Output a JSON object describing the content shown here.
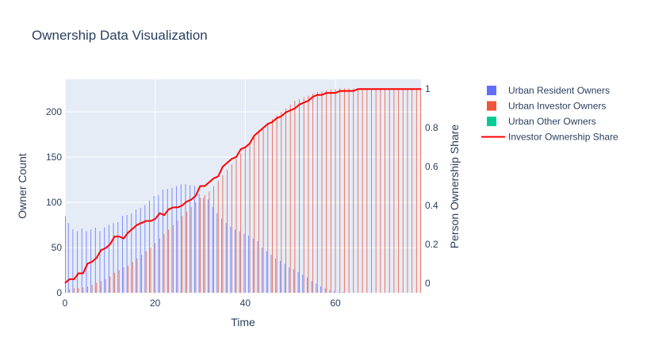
{
  "chart_data": {
    "type": "bar",
    "title": "Ownership Data Visualization",
    "xlabel": "Time",
    "ylabel": "Owner Count",
    "y2label": "Person Ownership Share",
    "xlim": [
      0,
      79
    ],
    "ylim": [
      0,
      236
    ],
    "y2lim": [
      -0.05,
      1.05
    ],
    "x_ticks": [
      "0",
      "20",
      "40",
      "60"
    ],
    "x_tick_values": [
      0,
      20,
      40,
      60
    ],
    "y_ticks": [
      "0",
      "50",
      "100",
      "150",
      "200"
    ],
    "y_tick_values": [
      0,
      50,
      100,
      150,
      200
    ],
    "y2_ticks": [
      "0",
      "0.2",
      "0.4",
      "0.6",
      "0.8",
      "1"
    ],
    "y2_tick_values": [
      0,
      0.2,
      0.4,
      0.6,
      0.8,
      1
    ],
    "grid": true,
    "legend_position": "right",
    "x": [
      0,
      1,
      2,
      3,
      4,
      5,
      6,
      7,
      8,
      9,
      10,
      11,
      12,
      13,
      14,
      15,
      16,
      17,
      18,
      19,
      20,
      21,
      22,
      23,
      24,
      25,
      26,
      27,
      28,
      29,
      30,
      31,
      32,
      33,
      34,
      35,
      36,
      37,
      38,
      39,
      40,
      41,
      42,
      43,
      44,
      45,
      46,
      47,
      48,
      49,
      50,
      51,
      52,
      53,
      54,
      55,
      56,
      57,
      58,
      59,
      60,
      61,
      62,
      63,
      64,
      65,
      66,
      67,
      68,
      69,
      70,
      71,
      72,
      73,
      74,
      75,
      76,
      77,
      78,
      79
    ],
    "series": [
      {
        "name": "Urban Resident Owners",
        "type": "bar",
        "axis": "left",
        "color": "#636efa",
        "values": [
          85,
          77,
          70,
          68,
          71,
          68,
          70,
          72,
          68,
          72,
          75,
          77,
          78,
          85,
          86,
          88,
          92,
          94,
          97,
          102,
          107,
          108,
          114,
          115,
          116,
          118,
          120,
          120,
          119,
          118,
          110,
          105,
          103,
          95,
          88,
          82,
          77,
          73,
          70,
          68,
          65,
          63,
          60,
          57,
          50,
          46,
          42,
          38,
          35,
          32,
          28,
          26,
          23,
          20,
          17,
          13,
          10,
          7,
          5,
          3,
          2,
          1,
          1,
          0,
          0,
          0,
          0,
          0,
          0,
          0,
          0,
          0,
          0,
          0,
          0,
          0,
          0,
          0,
          0,
          0
        ]
      },
      {
        "name": "Urban Investor Owners",
        "type": "bar",
        "axis": "left",
        "color": "#ef553b",
        "values": [
          3,
          4,
          5,
          5,
          6,
          7,
          9,
          11,
          13,
          15,
          18,
          22,
          25,
          28,
          30,
          34,
          38,
          42,
          46,
          50,
          55,
          60,
          65,
          70,
          75,
          80,
          85,
          90,
          95,
          100,
          105,
          108,
          112,
          118,
          124,
          130,
          136,
          142,
          148,
          154,
          160,
          166,
          172,
          178,
          184,
          188,
          192,
          196,
          200,
          204,
          208,
          212,
          214,
          216,
          218,
          220,
          222,
          223,
          224,
          225,
          225,
          226,
          226,
          226,
          226,
          226,
          226,
          226,
          226,
          226,
          226,
          226,
          226,
          226,
          226,
          226,
          226,
          226,
          226,
          226
        ]
      },
      {
        "name": "Urban Other Owners",
        "type": "bar",
        "axis": "left",
        "color": "#00cc96",
        "values": [
          0,
          0,
          0,
          0,
          0,
          0,
          0,
          0,
          0,
          0,
          0,
          0,
          0,
          0,
          0,
          0,
          0,
          0,
          0,
          0,
          0,
          0,
          0,
          0,
          0,
          0,
          0,
          0,
          0,
          0,
          0,
          0,
          0,
          0,
          0,
          0,
          0,
          0,
          0,
          0,
          0,
          0,
          0,
          0,
          0,
          0,
          0,
          0,
          0,
          0,
          0,
          0,
          0,
          0,
          0,
          0,
          0,
          0,
          0,
          0,
          0,
          0,
          0,
          0,
          0,
          0,
          0,
          0,
          0,
          0,
          0,
          0,
          0,
          0,
          0,
          0,
          0,
          0,
          0,
          0
        ]
      },
      {
        "name": "Investor Ownership Share",
        "type": "line",
        "axis": "right",
        "color": "#ff0000",
        "values": [
          0.0,
          0.02,
          0.02,
          0.05,
          0.05,
          0.1,
          0.11,
          0.13,
          0.17,
          0.18,
          0.2,
          0.24,
          0.24,
          0.23,
          0.26,
          0.28,
          0.3,
          0.31,
          0.32,
          0.32,
          0.33,
          0.36,
          0.35,
          0.38,
          0.39,
          0.39,
          0.4,
          0.42,
          0.43,
          0.45,
          0.5,
          0.5,
          0.52,
          0.54,
          0.55,
          0.6,
          0.62,
          0.64,
          0.65,
          0.69,
          0.7,
          0.72,
          0.76,
          0.78,
          0.8,
          0.82,
          0.83,
          0.85,
          0.86,
          0.88,
          0.89,
          0.9,
          0.92,
          0.93,
          0.94,
          0.96,
          0.97,
          0.97,
          0.98,
          0.98,
          0.98,
          0.99,
          0.99,
          0.99,
          0.99,
          1.0,
          1.0,
          1.0,
          1.0,
          1.0,
          1.0,
          1.0,
          1.0,
          1.0,
          1.0,
          1.0,
          1.0,
          1.0,
          1.0,
          1.0
        ]
      }
    ]
  }
}
